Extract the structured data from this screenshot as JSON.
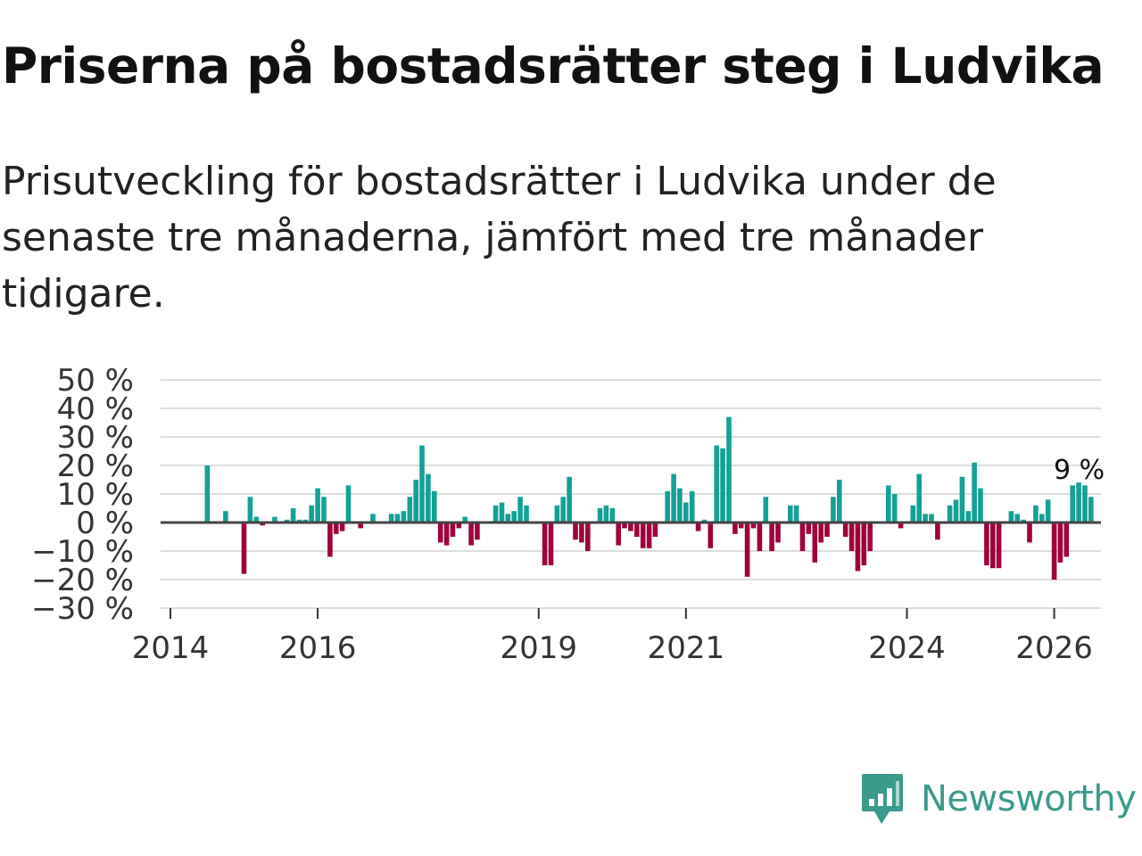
{
  "header": {
    "title": "Priserna på bostadsrätter steg i Ludvika",
    "subtitle": "Prisutveckling för bostadsrätter i Ludvika under de senaste tre månaderna, jämfört med tre månader tidigare."
  },
  "colors": {
    "positive": "#14a195",
    "negative": "#a0003c",
    "grid": "#dddddd",
    "zero": "#444444",
    "brand": "#3a9a8c"
  },
  "brand": {
    "name": "Newsworthy",
    "icon": "newsworthy-logo-icon"
  },
  "chart_data": {
    "type": "bar",
    "title": "Priserna på bostadsrätter steg i Ludvika",
    "xlabel": "",
    "ylabel": "",
    "ylim": [
      -30,
      50
    ],
    "yticks": [
      50,
      40,
      30,
      20,
      10,
      0,
      -10,
      -20,
      -30
    ],
    "ytick_labels": [
      "50 %",
      "40 %",
      "30 %",
      "20 %",
      "10 %",
      "0 %",
      "−10 %",
      "−20 %",
      "−30 %"
    ],
    "xlim": [
      2014,
      2026.55
    ],
    "xticks": [
      2014,
      2016,
      2019,
      2021,
      2024,
      2026
    ],
    "xtick_labels": [
      "2014",
      "2016",
      "2019",
      "2021",
      "2024",
      "2026"
    ],
    "start": 2014.5,
    "step": 0.08333,
    "values": [
      20,
      null,
      null,
      4,
      null,
      null,
      -18,
      9,
      2,
      -1,
      null,
      2,
      null,
      1,
      5,
      1,
      1,
      6,
      12,
      9,
      -12,
      -4,
      -3,
      13,
      null,
      -2,
      null,
      3,
      null,
      null,
      3,
      3,
      4,
      9,
      15,
      27,
      17,
      11,
      -7,
      -8,
      -5,
      -2,
      2,
      -8,
      -6,
      null,
      null,
      6,
      7,
      3,
      4,
      9,
      6,
      null,
      null,
      -15,
      -15,
      6,
      9,
      16,
      -6,
      -7,
      -10,
      null,
      5,
      6,
      5,
      -8,
      -2,
      -3,
      -5,
      -9,
      -9,
      -5,
      null,
      11,
      17,
      12,
      7,
      11,
      -3,
      1,
      -9,
      27,
      26,
      37,
      -4,
      -2,
      -19,
      -2,
      -10,
      9,
      -10,
      -7,
      null,
      6,
      6,
      -10,
      -4,
      -14,
      -7,
      -5,
      9,
      15,
      -5,
      -10,
      -17,
      -15,
      -10,
      null,
      null,
      13,
      10,
      -2,
      null,
      6,
      17,
      3,
      3,
      -6,
      null,
      6,
      8,
      16,
      4,
      21,
      12,
      -15,
      -16,
      -16,
      null,
      4,
      3,
      1,
      -7,
      6,
      3,
      8,
      -20,
      -14,
      -12,
      13,
      14,
      13,
      9
    ],
    "annotations": [
      {
        "text": "9 %",
        "x": 2026.17,
        "y": 9
      }
    ]
  }
}
